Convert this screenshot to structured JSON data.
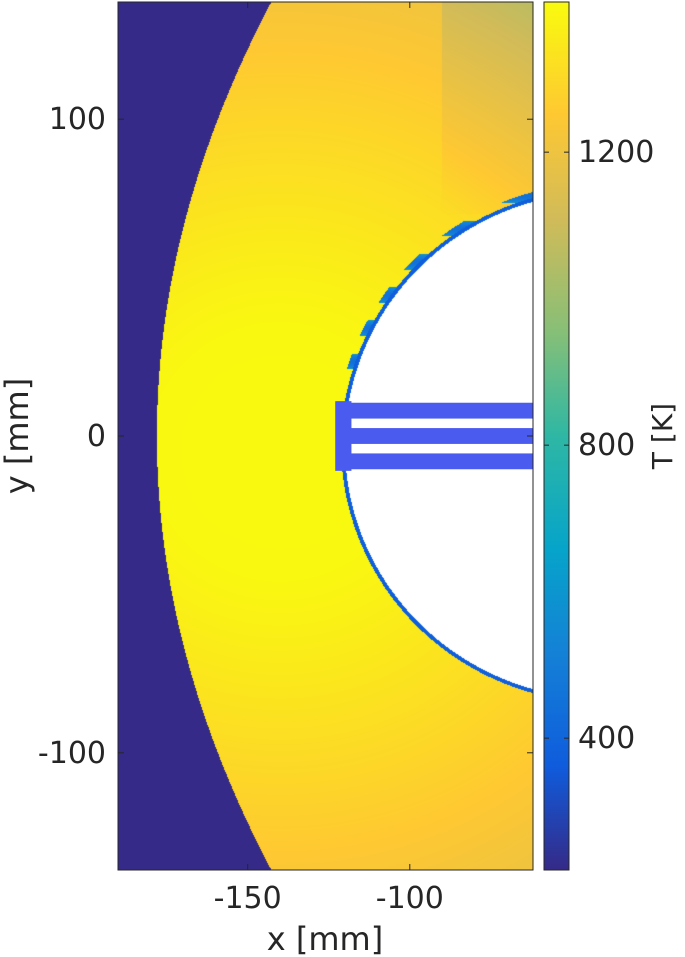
{
  "chart_data": {
    "type": "heatmap",
    "xlabel": "x [mm]",
    "ylabel": "y [mm]",
    "colorbar_label": "T [K]",
    "xlim": [
      -190,
      -62
    ],
    "ylim": [
      -137,
      137
    ],
    "x_ticks": [
      -150,
      -100
    ],
    "y_ticks": [
      100,
      0,
      -100
    ],
    "colorbar_ticks": [
      1200,
      800,
      400
    ],
    "colorbar_range": [
      220,
      1405
    ],
    "colormap": "parula",
    "colormap_stops": [
      "#352a87",
      "#0f5cdd",
      "#1481d6",
      "#06a4ca",
      "#2eb7a4",
      "#87bf77",
      "#d1bb59",
      "#fec832",
      "#f9fb0e"
    ],
    "field": {
      "background_temperature": 220,
      "bow_shock": {
        "vertex_x": -178,
        "hyperbola_a": 178,
        "curvature": 3.5e-05
      },
      "hot_core_temperature": 1400,
      "hot_core_center": [
        -140,
        -5
      ],
      "edge_temperature": 1000,
      "body_circle": {
        "center": [
          -40,
          -3
        ],
        "radius": 80
      },
      "boundary_layer_temperature": 380,
      "injector_jets": [
        {
          "y": 8,
          "x_start": -120,
          "x_end": -62
        },
        {
          "y": 0,
          "x_start": -120,
          "x_end": -62
        },
        {
          "y": -8,
          "x_start": -120,
          "x_end": -62
        }
      ]
    }
  }
}
